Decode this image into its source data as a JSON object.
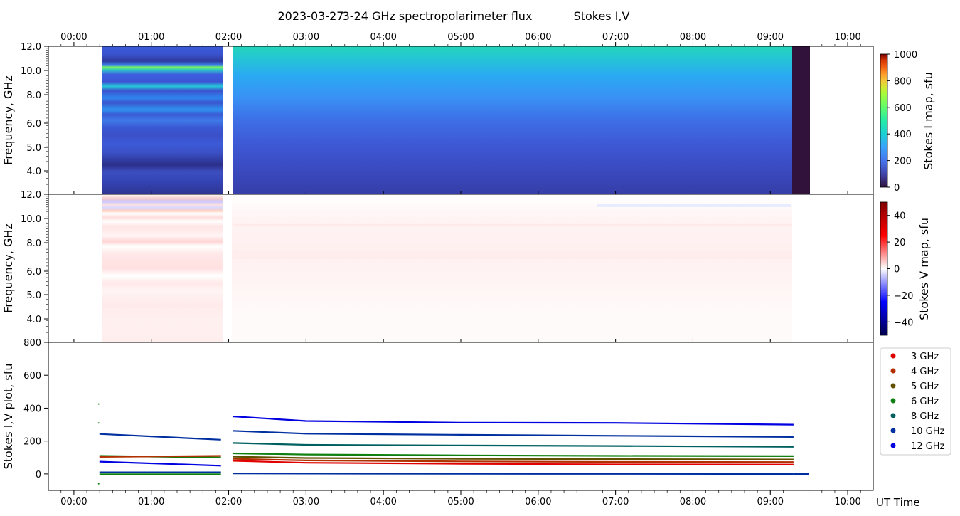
{
  "title": {
    "date": "2023-03-27",
    "instrument": "3-24 GHz spectropolarimeter flux",
    "params": "Stokes I,V"
  },
  "time_axis": {
    "tick_labels": [
      "00:00",
      "01:00",
      "02:00",
      "03:00",
      "04:00",
      "05:00",
      "06:00",
      "07:00",
      "08:00",
      "09:00",
      "10:00"
    ],
    "tick_hours": [
      0,
      1,
      2,
      3,
      4,
      5,
      6,
      7,
      8,
      9,
      10
    ],
    "range_hours": [
      -0.33,
      10.33
    ],
    "xlabel": "UT Time"
  },
  "panel_i": {
    "ylabel": "Frequency, GHz",
    "yticks": [
      "12.0",
      "10.0",
      "8.0",
      "6.0",
      "5.0",
      "4.0"
    ],
    "colorbar": {
      "label": "Stokes I map, sfu",
      "ticks": [
        "0",
        "200",
        "400",
        "600",
        "800",
        "1000"
      ],
      "range": [
        0,
        1000
      ]
    }
  },
  "panel_v": {
    "ylabel": "Frequency, GHz",
    "yticks": [
      "12.0",
      "10.0",
      "8.0",
      "6.0",
      "5.0",
      "4.0"
    ],
    "colorbar": {
      "label": "Stokes V map, sfu",
      "ticks": [
        "40",
        "20",
        "0",
        "−20",
        "−40"
      ],
      "range": [
        -50,
        50
      ]
    }
  },
  "panel_plot": {
    "ylabel": "Stokes I,V plot, sfu",
    "yticks": [
      "800",
      "600",
      "400",
      "200",
      "0"
    ],
    "ylim": [
      -100,
      800
    ]
  },
  "legend": [
    {
      "label": "3 GHz",
      "color": "#e00000"
    },
    {
      "label": "4 GHz",
      "color": "#b03000"
    },
    {
      "label": "5 GHz",
      "color": "#605000"
    },
    {
      "label": "6 GHz",
      "color": "#108010"
    },
    {
      "label": "8 GHz",
      "color": "#006060"
    },
    {
      "label": "10 GHz",
      "color": "#0030a0"
    },
    {
      "label": "12 GHz",
      "color": "#0000e0"
    }
  ],
  "chart_data": {
    "type": "line",
    "title": "2023-03-27 3-24 GHz spectropolarimeter flux Stokes I,V",
    "xlabel": "UT Time",
    "ylabel": "Stokes I,V plot, sfu",
    "ylim": [
      -100,
      800
    ],
    "x_unit": "UT hours",
    "series": [
      {
        "name": "12 GHz",
        "color": "#0000e0",
        "x": [
          2.05,
          3.0,
          5.0,
          7.0,
          9.3
        ],
        "values": [
          350,
          322,
          312,
          310,
          300
        ]
      },
      {
        "name": "12 GHz",
        "color": "#0000e0",
        "x": [
          0.33,
          1.9
        ],
        "values": [
          75,
          50
        ]
      },
      {
        "name": "10 GHz",
        "color": "#0030a0",
        "x": [
          0.33,
          1.9
        ],
        "values": [
          243,
          208
        ]
      },
      {
        "name": "10 GHz",
        "color": "#0030a0",
        "x": [
          2.05,
          3.0,
          5.0,
          7.0,
          9.3
        ],
        "values": [
          262,
          245,
          238,
          232,
          225
        ]
      },
      {
        "name": "8 GHz",
        "color": "#006060",
        "x": [
          2.05,
          3.0,
          5.0,
          7.0,
          9.3
        ],
        "values": [
          188,
          177,
          173,
          170,
          165
        ]
      },
      {
        "name": "6 GHz",
        "color": "#108010",
        "x": [
          2.05,
          3.0,
          5.0,
          7.0,
          9.3
        ],
        "values": [
          125,
          118,
          113,
          110,
          108
        ]
      },
      {
        "name": "6 GHz",
        "color": "#108010",
        "x": [
          0.33,
          1.9
        ],
        "values": [
          110,
          100
        ]
      },
      {
        "name": "5 GHz",
        "color": "#605000",
        "x": [
          2.05,
          3.0,
          5.0,
          7.0,
          9.3
        ],
        "values": [
          105,
          97,
          92,
          90,
          88
        ]
      },
      {
        "name": "4 GHz",
        "color": "#b03000",
        "x": [
          2.05,
          3.0,
          5.0,
          7.0,
          9.3
        ],
        "values": [
          92,
          82,
          76,
          73,
          72
        ]
      },
      {
        "name": "4 GHz",
        "color": "#b03000",
        "x": [
          0.33,
          1.9
        ],
        "values": [
          104,
          110
        ]
      },
      {
        "name": "3 GHz",
        "color": "#e00000",
        "x": [
          2.05,
          3.0,
          5.0,
          7.0,
          9.3
        ],
        "values": [
          80,
          68,
          62,
          58,
          57
        ]
      },
      {
        "name": "12 GHz",
        "color": "#0030a0",
        "x": [
          2.05,
          5.0,
          9.3
        ],
        "values": [
          3,
          1,
          0
        ]
      },
      {
        "name": "10 GHz",
        "color": "#0030a0",
        "x": [
          0.33,
          1.9
        ],
        "values": [
          10,
          10
        ]
      },
      {
        "name": "6 GHz",
        "color": "#108010",
        "x": [
          0.33,
          1.9
        ],
        "values": [
          -2,
          -2
        ]
      },
      {
        "name": "10 GHz",
        "color": "#0030a0",
        "x": [
          9.3,
          9.5
        ],
        "values": [
          0,
          0
        ]
      }
    ]
  }
}
